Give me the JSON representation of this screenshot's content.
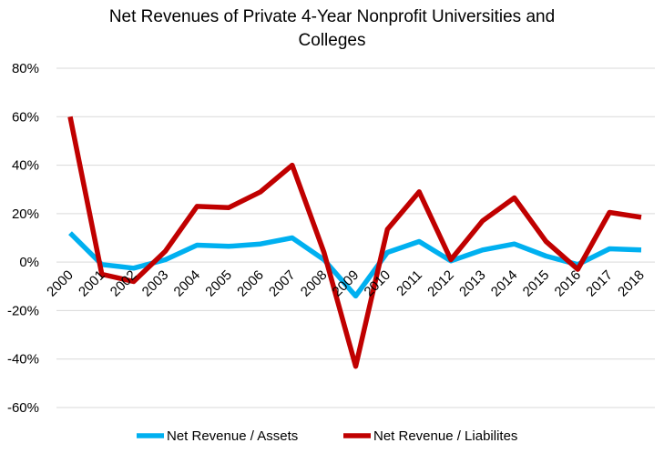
{
  "chart_data": {
    "type": "line",
    "title": "Net Revenues of Private 4-Year Nonprofit Universities and Colleges",
    "title_lines": [
      "Net Revenues of Private 4-Year Nonprofit Universities and",
      "Colleges"
    ],
    "xlabel": "",
    "ylabel": "",
    "categories": [
      "2000",
      "2001",
      "2002",
      "2003",
      "2004",
      "2005",
      "2006",
      "2007",
      "2008",
      "2009",
      "2010",
      "2011",
      "2012",
      "2013",
      "2014",
      "2015",
      "2016",
      "2017",
      "2018"
    ],
    "ylim": [
      -60,
      80
    ],
    "yticks": [
      -60,
      -40,
      -20,
      0,
      20,
      40,
      60,
      80
    ],
    "ytick_labels": [
      "-60%",
      "-40%",
      "-20%",
      "0%",
      "20%",
      "40%",
      "60%",
      "80%"
    ],
    "grid": "horizontal",
    "legend_position": "bottom",
    "series": [
      {
        "name": "Net Revenue / Assets",
        "color": "#00b0f0",
        "values": [
          12,
          -1,
          -2.5,
          1,
          7,
          6.5,
          7.5,
          10,
          1,
          -14,
          4,
          8.5,
          0.5,
          5,
          7.5,
          2.5,
          -1,
          5.5,
          5
        ]
      },
      {
        "name": "Net Revenue / Liabilites",
        "color": "#c00000",
        "values": [
          60,
          -5,
          -8,
          4.5,
          23,
          22.5,
          29,
          40,
          4,
          -43,
          13.5,
          29,
          1,
          17,
          26.5,
          8.5,
          -3,
          20.5,
          18.5
        ]
      }
    ]
  }
}
